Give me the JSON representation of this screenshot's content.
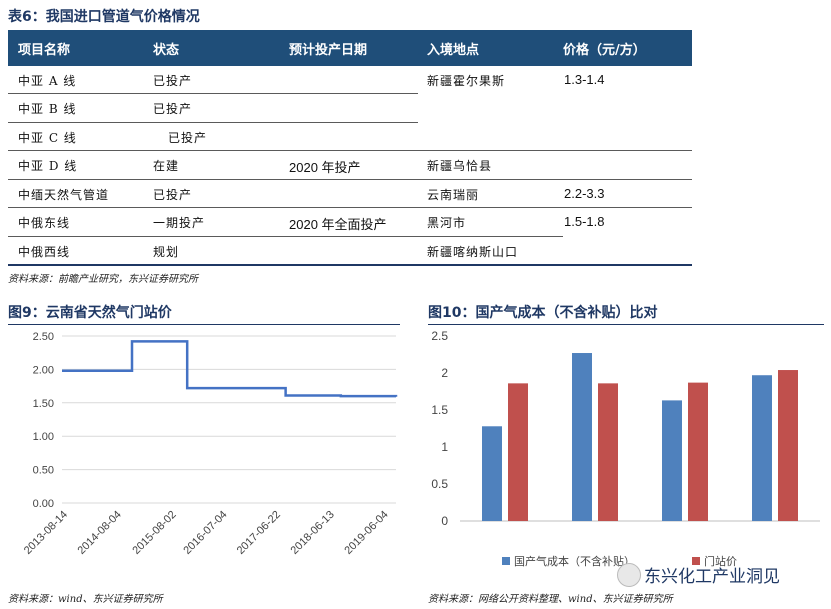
{
  "table": {
    "caption": "表6：我国进口管道气价格情况",
    "headers": [
      "项目名称",
      "状态",
      "预计投产日期",
      "入境地点",
      "价格（元/方）"
    ],
    "rows": [
      {
        "name": "中亚 A 线",
        "status": "已投产",
        "date": "",
        "entry": "新疆霍尔果斯",
        "price": "1.3-1.4"
      },
      {
        "name": "中亚 B 线",
        "status": "已投产",
        "date": "",
        "entry": "",
        "price": ""
      },
      {
        "name": "中亚 C 线",
        "status": "已投产",
        "date": "",
        "entry": "",
        "price": ""
      },
      {
        "name": "中亚 D 线",
        "status": "在建",
        "date": "2020 年投产",
        "entry": "新疆乌恰县",
        "price": ""
      },
      {
        "name": "中缅天然气管道",
        "status": "已投产",
        "date": "",
        "entry": "云南瑞丽",
        "price": "2.2-3.3"
      },
      {
        "name": "中俄东线",
        "status": "一期投产",
        "date": "2020 年全面投产",
        "entry": "黑河市",
        "price": "1.5-1.8"
      },
      {
        "name": "中俄西线",
        "status": "规划",
        "date": "",
        "entry": "新疆喀纳斯山口",
        "price": ""
      }
    ],
    "source": "资料来源：前瞻产业研究，东兴证券研究所"
  },
  "fig9": {
    "caption": "图9：云南省天然气门站价",
    "source": "资料来源：wind、东兴证券研究所"
  },
  "fig10": {
    "caption": "图10：国产气成本（不含补贴）比对",
    "source": "资料来源：网络公开资料整理、wind、东兴证券研究所"
  },
  "watermark": "东兴化工产业洞见",
  "chart_data": [
    {
      "type": "line",
      "x": [
        "2013-08-14",
        "2014-08-04",
        "2014-11-20",
        "2015-08-02",
        "2015-11-20",
        "2016-07-04",
        "2017-06-22",
        "2017-09-01",
        "2018-06-13",
        "2018-09-01",
        "2019-06-04",
        "2019-09-01"
      ],
      "series": [
        {
          "values": [
            1.98,
            1.98,
            2.42,
            2.42,
            1.72,
            1.72,
            1.72,
            1.61,
            1.61,
            1.6,
            1.6,
            1.59
          ]
        }
      ],
      "tick_labels_x": [
        "2013-08-14",
        "2014-08-04",
        "2015-08-02",
        "2016-07-04",
        "2017-06-22",
        "2018-06-13",
        "2019-06-04"
      ],
      "tick_labels_y": [
        "0.00",
        "0.50",
        "1.00",
        "1.50",
        "2.00",
        "2.50"
      ],
      "ylim": [
        0,
        2.5
      ],
      "color": "#4472c4",
      "grid": true
    },
    {
      "type": "bar",
      "categories": [
        "",
        "",
        "",
        ""
      ],
      "series": [
        {
          "name": "国产气成本（不含补贴）",
          "values": [
            1.28,
            2.27,
            1.63,
            1.97
          ],
          "color": "#4f81bd"
        },
        {
          "name": "门站价",
          "values": [
            1.86,
            1.86,
            1.87,
            2.04
          ],
          "color": "#c0504d"
        }
      ],
      "tick_labels_y": [
        "0",
        "0.5",
        "1",
        "1.5",
        "2",
        "2.5"
      ],
      "ylim": [
        0,
        2.5
      ],
      "legend": "bottom",
      "grid": false
    }
  ]
}
